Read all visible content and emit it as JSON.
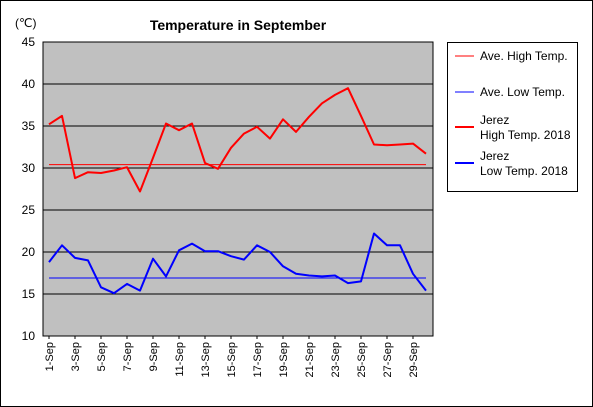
{
  "chart_data": {
    "type": "line",
    "title": "Temperature in September",
    "ylabel": "(℃)",
    "xlabel": "",
    "ylim": [
      10,
      45
    ],
    "yticks": [
      10,
      15,
      20,
      25,
      30,
      35,
      40,
      45
    ],
    "grid": true,
    "legend_position": "right",
    "categories": [
      "1-Sep",
      "2-Sep",
      "3-Sep",
      "4-Sep",
      "5-Sep",
      "6-Sep",
      "7-Sep",
      "8-Sep",
      "9-Sep",
      "10-Sep",
      "11-Sep",
      "12-Sep",
      "13-Sep",
      "14-Sep",
      "15-Sep",
      "16-Sep",
      "17-Sep",
      "18-Sep",
      "19-Sep",
      "20-Sep",
      "21-Sep",
      "22-Sep",
      "23-Sep",
      "24-Sep",
      "25-Sep",
      "26-Sep",
      "27-Sep",
      "28-Sep",
      "29-Sep",
      "30-Sep"
    ],
    "xtick_labels": [
      "1-Sep",
      "3-Sep",
      "5-Sep",
      "7-Sep",
      "9-Sep",
      "11-Sep",
      "13-Sep",
      "15-Sep",
      "17-Sep",
      "19-Sep",
      "21-Sep",
      "23-Sep",
      "25-Sep",
      "27-Sep",
      "29-Sep"
    ],
    "series": [
      {
        "name": "Ave. High Temp.",
        "color": "#ff0000",
        "width": 1,
        "values": [
          30.4,
          30.4,
          30.4,
          30.4,
          30.4,
          30.4,
          30.4,
          30.4,
          30.4,
          30.4,
          30.4,
          30.4,
          30.4,
          30.4,
          30.4,
          30.4,
          30.4,
          30.4,
          30.4,
          30.4,
          30.4,
          30.4,
          30.4,
          30.4,
          30.4,
          30.4,
          30.4,
          30.4,
          30.4,
          30.4
        ]
      },
      {
        "name": "Ave. Low Temp.",
        "color": "#0000ff",
        "width": 1,
        "values": [
          16.9,
          16.9,
          16.9,
          16.9,
          16.9,
          16.9,
          16.9,
          16.9,
          16.9,
          16.9,
          16.9,
          16.9,
          16.9,
          16.9,
          16.9,
          16.9,
          16.9,
          16.9,
          16.9,
          16.9,
          16.9,
          16.9,
          16.9,
          16.9,
          16.9,
          16.9,
          16.9,
          16.9,
          16.9,
          16.9
        ]
      },
      {
        "name": "Jerez High Temp. 2018",
        "legend_lines": [
          "Jerez",
          "High Temp. 2018"
        ],
        "color": "#ff0000",
        "width": 2,
        "values": [
          35.2,
          36.2,
          28.8,
          29.5,
          29.4,
          29.7,
          30.1,
          27.2,
          31.2,
          35.3,
          34.5,
          35.3,
          30.6,
          29.9,
          32.4,
          34.1,
          34.9,
          33.5,
          35.8,
          34.3,
          36.1,
          37.7,
          38.7,
          39.5,
          36.2,
          32.8,
          32.7,
          32.8,
          32.9,
          31.7
        ]
      },
      {
        "name": "Jerez Low Temp. 2018",
        "legend_lines": [
          "Jerez",
          "Low Temp. 2018"
        ],
        "color": "#0000ff",
        "width": 2,
        "values": [
          18.8,
          20.8,
          19.3,
          19.0,
          15.8,
          15.1,
          16.2,
          15.4,
          19.2,
          17.1,
          20.2,
          21.0,
          20.1,
          20.1,
          19.5,
          19.1,
          20.8,
          20.0,
          18.3,
          17.4,
          17.2,
          17.1,
          17.2,
          16.3,
          16.5,
          22.2,
          20.8,
          20.8,
          17.4,
          15.4
        ]
      }
    ]
  }
}
